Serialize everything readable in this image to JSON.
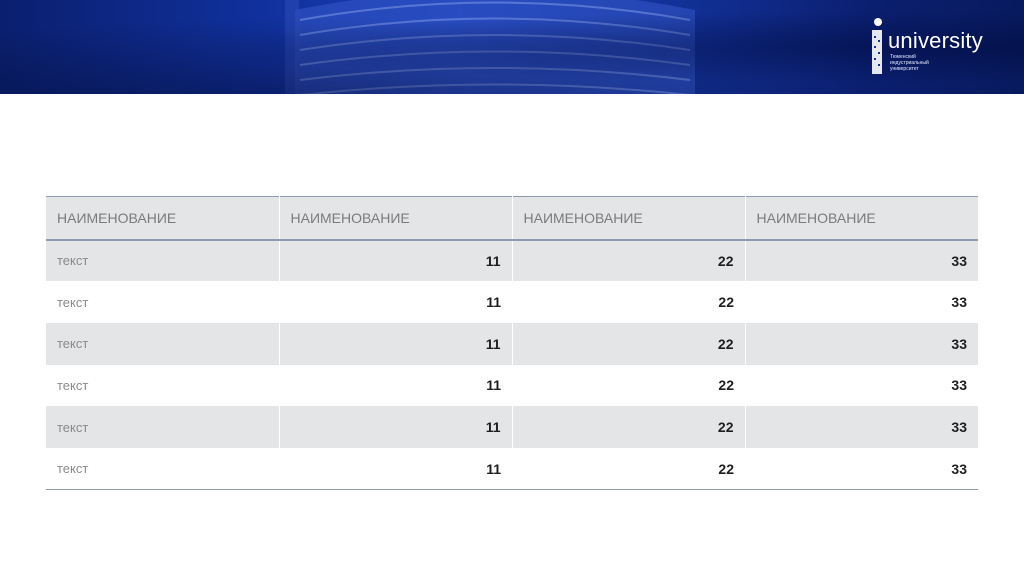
{
  "logo": {
    "name": "university",
    "subtitle_lines": [
      "Тюменский",
      "индустриальный",
      "университет"
    ]
  },
  "table": {
    "headers": [
      "НАИМЕНОВАНИЕ",
      "НАИМЕНОВАНИЕ",
      "НАИМЕНОВАНИЕ",
      "НАИМЕНОВАНИЕ"
    ],
    "rows": [
      [
        "текст",
        "11",
        "22",
        "33"
      ],
      [
        "текст",
        "11",
        "22",
        "33"
      ],
      [
        "текст",
        "11",
        "22",
        "33"
      ],
      [
        "текст",
        "11",
        "22",
        "33"
      ],
      [
        "текст",
        "11",
        "22",
        "33"
      ],
      [
        "текст",
        "11",
        "22",
        "33"
      ]
    ]
  },
  "colors": {
    "banner_blue": "#1a3fb8",
    "row_shade": "#e4e5e7",
    "rule": "#8e9ab0"
  }
}
